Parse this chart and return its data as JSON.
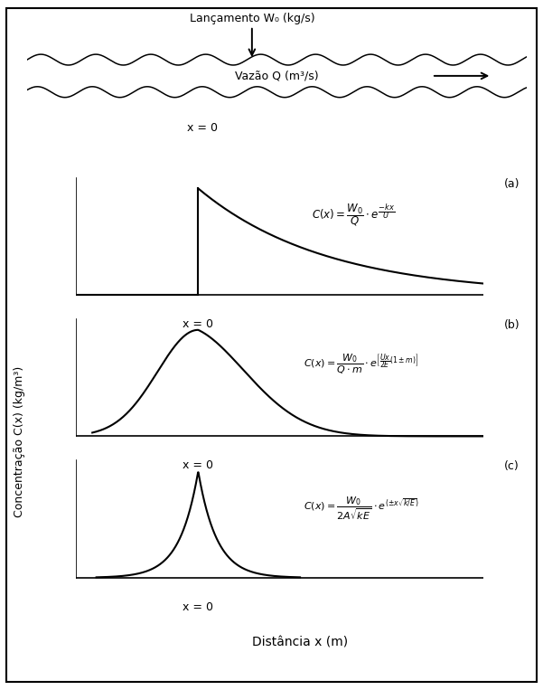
{
  "fig_width": 6.01,
  "fig_height": 7.63,
  "dpi": 100,
  "background_color": "#ffffff",
  "border_color": "#000000",
  "river_top_label": "Lançamento W₀ (kg/s)",
  "river_flow_label": "Vazão Q (m³/s)",
  "x0_label": "x = 0",
  "xlabel": "Distância x (m)",
  "ylabel": "Concentração C(x) (kg/m³)",
  "panel_a_label": "(a)",
  "panel_b_label": "(b)",
  "panel_c_label": "(c)"
}
